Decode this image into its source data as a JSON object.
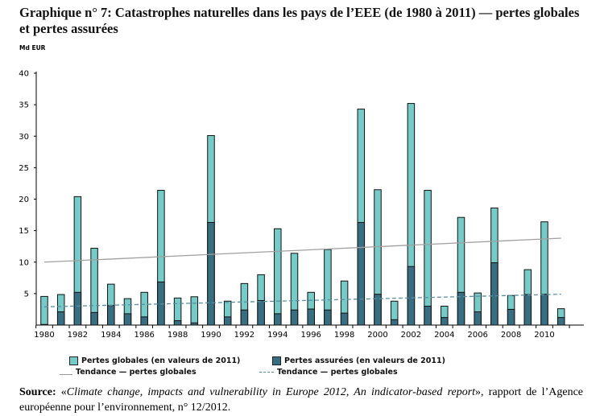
{
  "title": "Graphique n° 7: Catastrophes naturelles dans les pays de l’EEE (de 1980 à 2011) — pertes globales et pertes assurées",
  "source": {
    "label": "Source:",
    "pre": " «",
    "italic": "Climate change, impacts and vulnerability in Europe 2012, An indicator-based report",
    "post": "», rapport de l’Agence européenne pour l’environnement, n° 12/2012."
  },
  "chart_data": {
    "type": "bar",
    "ylabel": "Md EUR",
    "ylim": [
      0,
      40
    ],
    "yticks": [
      5,
      10,
      15,
      20,
      25,
      30,
      35,
      40
    ],
    "x": [
      1980,
      1981,
      1982,
      1983,
      1984,
      1985,
      1986,
      1987,
      1988,
      1989,
      1990,
      1991,
      1992,
      1993,
      1994,
      1995,
      1996,
      1997,
      1998,
      1999,
      2000,
      2001,
      2002,
      2003,
      2004,
      2005,
      2006,
      2007,
      2008,
      2009,
      2010,
      2011
    ],
    "xtick_labels": [
      "1980",
      "1982",
      "1984",
      "1986",
      "1988",
      "1990",
      "1992",
      "1994",
      "1996",
      "1998",
      "2000",
      "2002",
      "2004",
      "2006",
      "2008",
      "2010"
    ],
    "series": [
      {
        "name": "Pertes globales (en valeurs de 2011)",
        "color": "#76cbc8",
        "values": [
          4.55,
          4.85,
          20.4,
          12.2,
          6.5,
          4.2,
          5.2,
          21.4,
          4.3,
          4.5,
          30.1,
          3.8,
          6.6,
          8.0,
          15.3,
          11.4,
          5.2,
          12.0,
          7.0,
          34.3,
          21.5,
          3.8,
          35.2,
          21.4,
          3.0,
          17.1,
          5.1,
          18.6,
          4.7,
          8.8,
          16.4,
          2.6
        ]
      },
      {
        "name": "Pertes assurées (en valeurs de 2011)",
        "color": "#376e82",
        "values": [
          0.1,
          2.1,
          5.2,
          2.0,
          3.1,
          1.8,
          1.3,
          6.85,
          0.7,
          0.35,
          16.3,
          1.3,
          2.4,
          3.9,
          1.8,
          2.4,
          2.55,
          2.4,
          1.9,
          16.3,
          4.9,
          0.85,
          9.3,
          3.0,
          1.2,
          5.2,
          2.1,
          9.9,
          2.5,
          4.85,
          4.9,
          1.2
        ]
      }
    ],
    "trends": [
      {
        "name": "Tendance — pertes globales",
        "style": "solid",
        "color": "#a0a0a0",
        "start": [
          1980,
          10.0
        ],
        "end": [
          2011,
          13.8
        ]
      },
      {
        "name": "Tendance — pertes globales",
        "style": "dashed",
        "color": "#5a8fa0",
        "start": [
          1980,
          2.9
        ],
        "end": [
          2011,
          4.9
        ]
      }
    ]
  }
}
